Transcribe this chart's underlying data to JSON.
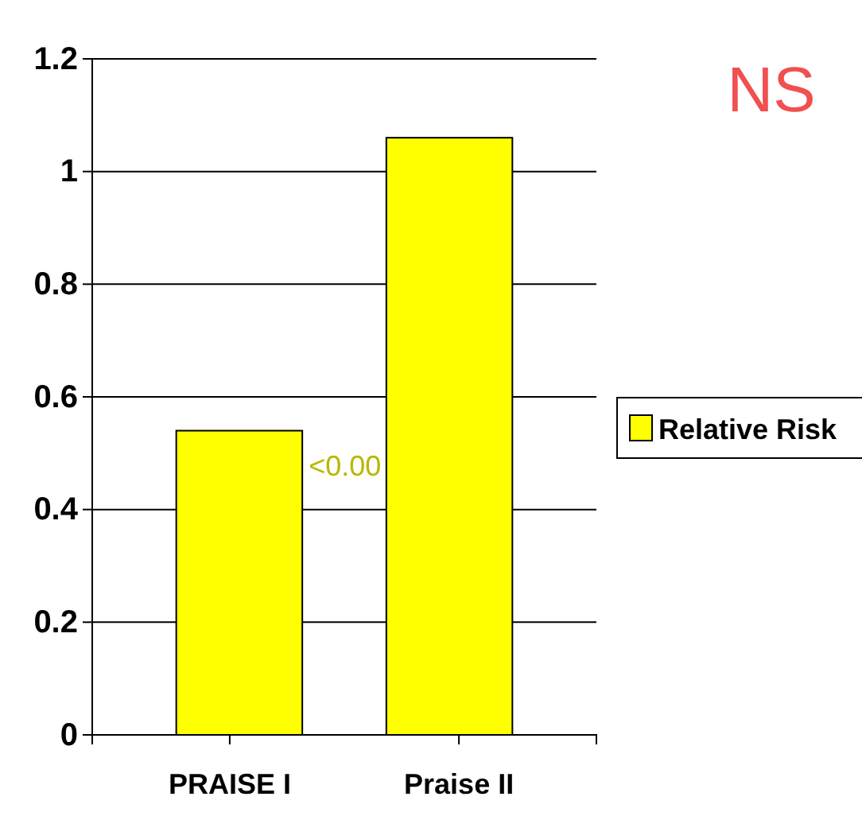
{
  "chart_data": {
    "type": "bar",
    "categories": [
      "PRAISE I",
      "Praise II"
    ],
    "series": [
      {
        "name": "Relative Risk",
        "color": "#ffff00",
        "values": [
          0.54,
          1.06
        ]
      }
    ],
    "ylim": [
      0,
      1.2
    ],
    "yticks": [
      0,
      0.2,
      0.4,
      0.6,
      0.8,
      1,
      1.2
    ],
    "grid": "y",
    "legend": "right",
    "annotations": [
      "<0.00",
      "NS"
    ]
  }
}
